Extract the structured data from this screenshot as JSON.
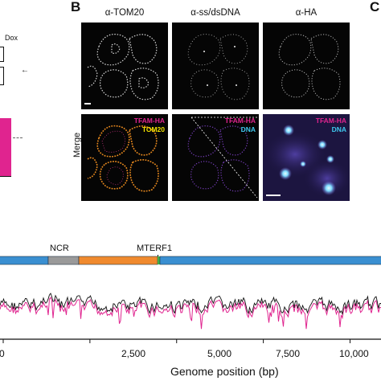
{
  "panels": {
    "B": "B",
    "C": "C"
  },
  "left_fragment": {
    "dox": "Dox",
    "arrow": "←"
  },
  "columns": [
    "α-TOM20",
    "α-ss/dsDNA",
    "α-HA"
  ],
  "row_label": "Merge",
  "overlays": {
    "merge1": {
      "line1": "TFAM-HA",
      "line2": "TOM20"
    },
    "merge2": {
      "line1": "TFAM-HA",
      "line2": "DNA"
    },
    "merge3": {
      "line1": "TFAM-HA",
      "line2": "DNA"
    }
  },
  "colors": {
    "magenta": "#e0248f",
    "yellow": "#f3e200",
    "cyan": "#3ec8ee",
    "blue_segment": "#3a8fd1",
    "orange_segment": "#f08a2e",
    "grey_segment": "#9a9a9a",
    "green_mark": "#3fae49"
  },
  "genome_map": {
    "labels": {
      "ncr": "NCR",
      "mterf1": "MTERF1"
    }
  },
  "chart_data": {
    "type": "line",
    "xlabel": "Genome position (bp)",
    "xlim": [
      0,
      10800
    ],
    "xticks": [
      "0",
      "2,500",
      "5,000",
      "7,500",
      "10,000"
    ],
    "series": [
      {
        "color": "#111111"
      },
      {
        "color": "#e0248f"
      }
    ]
  }
}
